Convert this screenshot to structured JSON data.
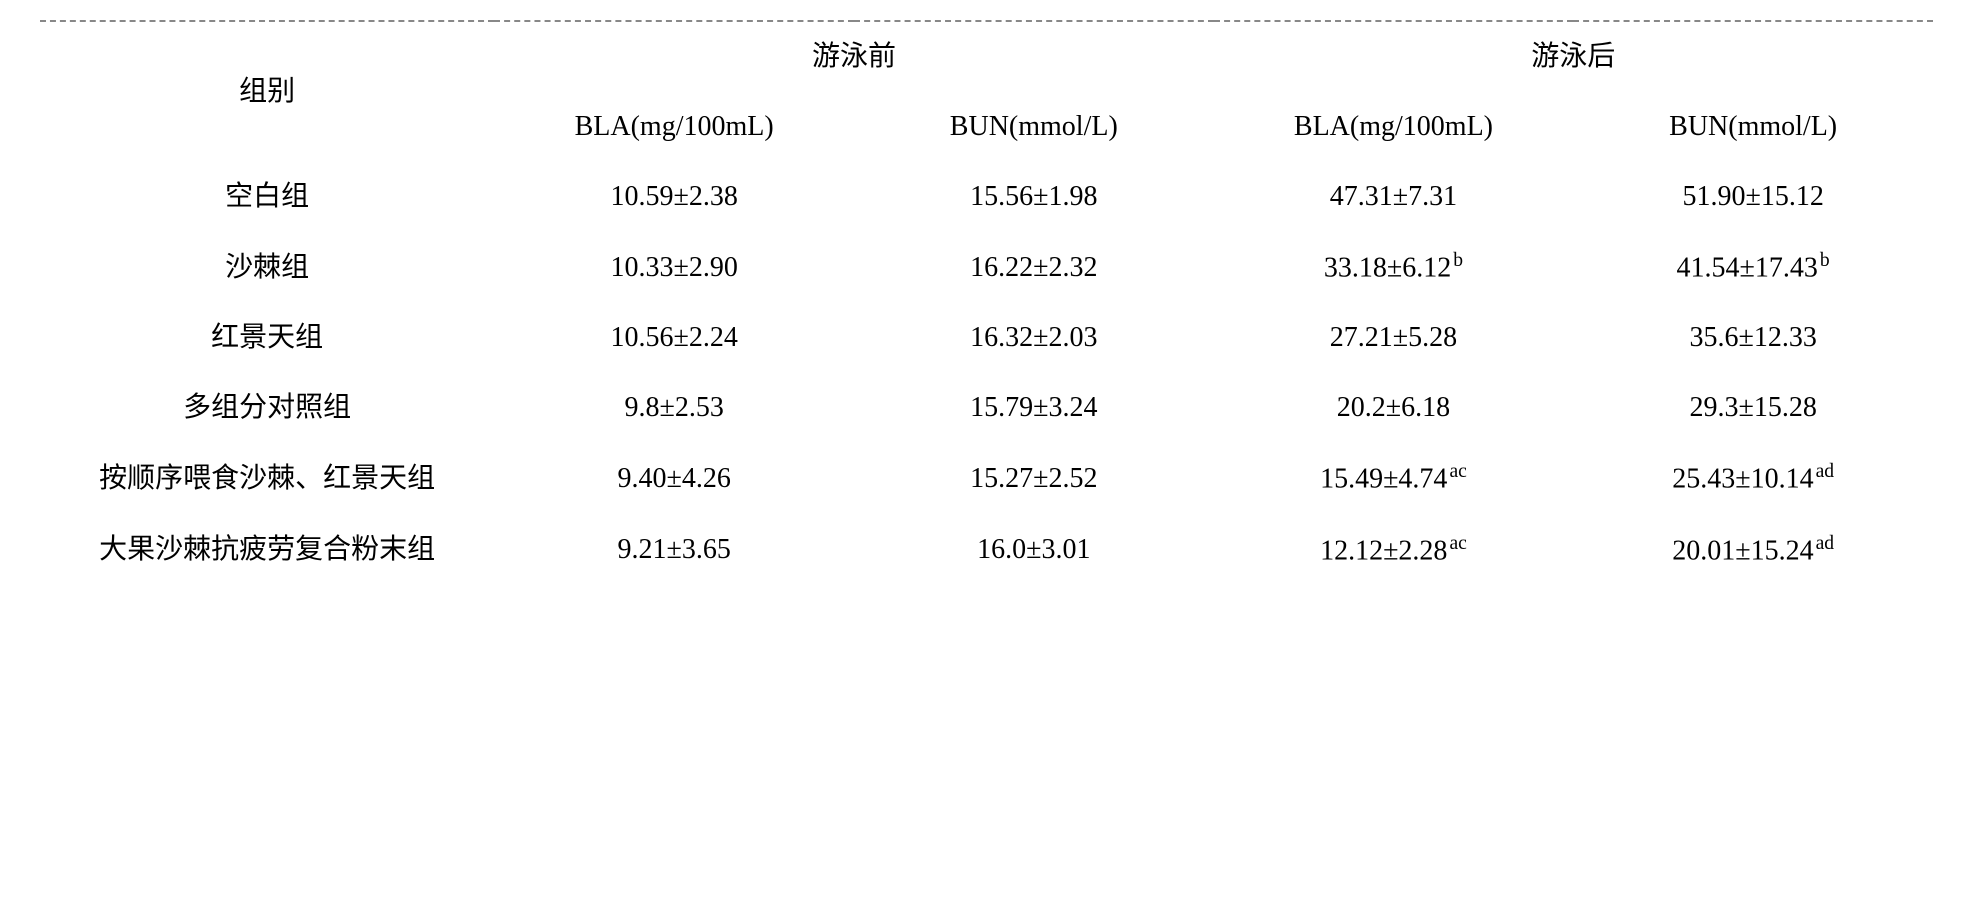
{
  "header": {
    "group_label": "组别",
    "pre_swim": "游泳前",
    "post_swim": "游泳后",
    "bla_unit": "BLA(mg/100mL)",
    "bun_unit": "BUN(mmol/L)"
  },
  "rows": [
    {
      "label": "空白组",
      "pre_bla": "10.59±2.38",
      "pre_bla_sup": "",
      "pre_bun": "15.56±1.98",
      "pre_bun_sup": "",
      "post_bla": "47.31±7.31",
      "post_bla_sup": "",
      "post_bun": "51.90±15.12",
      "post_bun_sup": ""
    },
    {
      "label": "沙棘组",
      "pre_bla": "10.33±2.90",
      "pre_bla_sup": "",
      "pre_bun": "16.22±2.32",
      "pre_bun_sup": "",
      "post_bla": "33.18±6.12",
      "post_bla_sup": "b",
      "post_bun": "41.54±17.43",
      "post_bun_sup": "b"
    },
    {
      "label": "红景天组",
      "pre_bla": "10.56±2.24",
      "pre_bla_sup": "",
      "pre_bun": "16.32±2.03",
      "pre_bun_sup": "",
      "post_bla": "27.21±5.28",
      "post_bla_sup": "",
      "post_bun": "35.6±12.33",
      "post_bun_sup": ""
    },
    {
      "label": "多组分对照组",
      "pre_bla": "9.8±2.53",
      "pre_bla_sup": "",
      "pre_bun": "15.79±3.24",
      "pre_bun_sup": "",
      "post_bla": "20.2±6.18",
      "post_bla_sup": "",
      "post_bun": "29.3±15.28",
      "post_bun_sup": ""
    },
    {
      "label": "按顺序喂食沙棘、红景天组",
      "pre_bla": "9.40±4.26",
      "pre_bla_sup": "",
      "pre_bun": "15.27±2.52",
      "pre_bun_sup": "",
      "post_bla": "15.49±4.74",
      "post_bla_sup": "ac",
      "post_bun": "25.43±10.14",
      "post_bun_sup": "ad"
    },
    {
      "label": "大果沙棘抗疲劳复合粉末组",
      "pre_bla": "9.21±3.65",
      "pre_bla_sup": "",
      "pre_bun": "16.0±3.01",
      "pre_bun_sup": "",
      "post_bla": "12.12±2.28",
      "post_bla_sup": "ac",
      "post_bun": "20.01±15.24",
      "post_bun_sup": "ad"
    }
  ],
  "style": {
    "font_size_pt": 28,
    "text_color": "#000000",
    "background_color": "#ffffff",
    "rule_color": "#888888"
  }
}
